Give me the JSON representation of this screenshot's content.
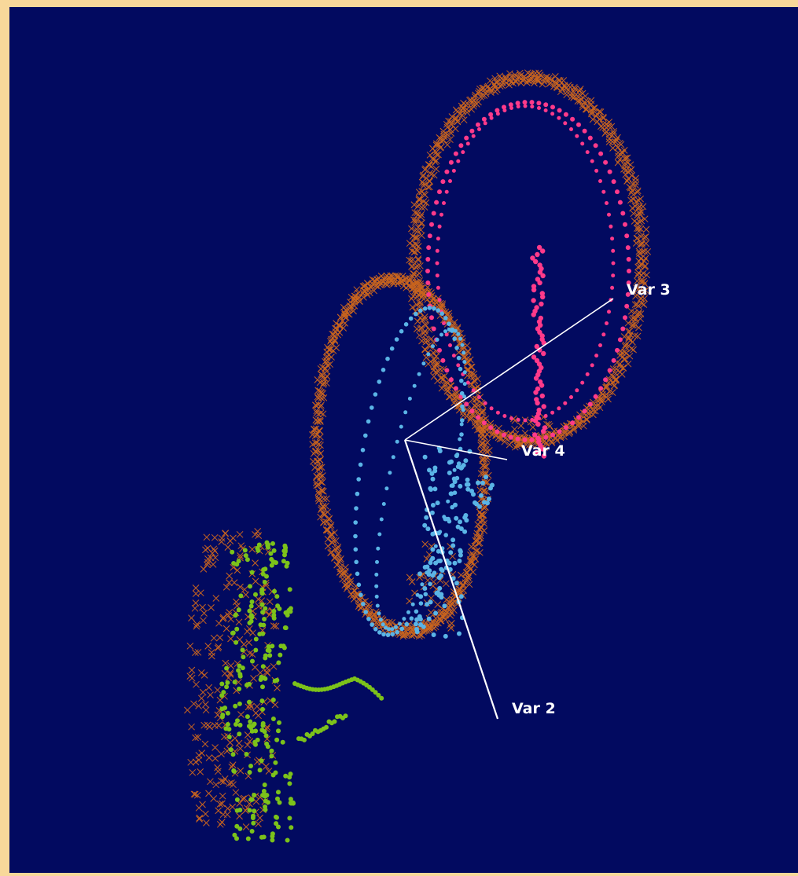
{
  "chart_data": {
    "type": "scatter",
    "title": "",
    "axes": [
      {
        "name": "Var 3"
      },
      {
        "name": "Var 4"
      },
      {
        "name": "Var 2"
      }
    ],
    "grid": false,
    "colors": {
      "background": "#020a60",
      "frame": "#f8d89a",
      "axes": "#ffffff",
      "orange_cross": "#c8641e",
      "pink": "#ff3a8a",
      "blue": "#5ab4e6",
      "green": "#7cc21a"
    },
    "series": [
      {
        "marker": "cross",
        "color": "#c8641e"
      },
      {
        "marker": "dot",
        "color": "#ff3a8a"
      },
      {
        "marker": "dot",
        "color": "#5ab4e6"
      },
      {
        "marker": "dot",
        "color": "#7cc21a"
      }
    ]
  }
}
